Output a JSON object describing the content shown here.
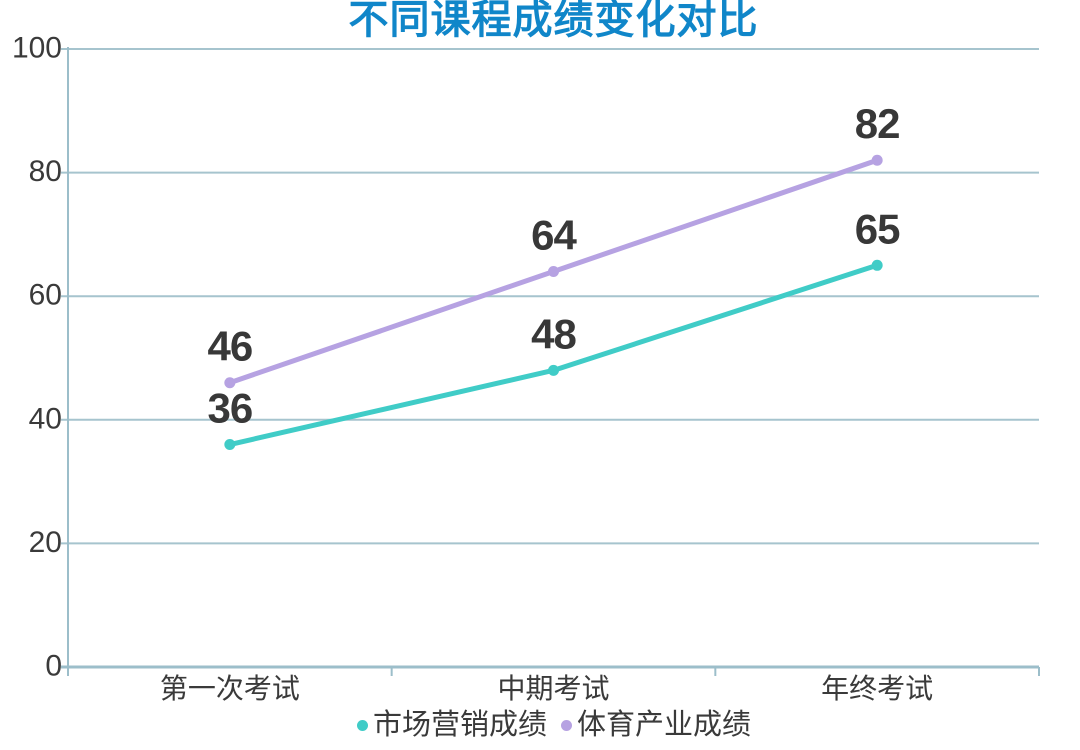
{
  "title": {
    "text": "不同课程成绩变化对比",
    "color": "#1086C9"
  },
  "chart_data": {
    "type": "line",
    "title": "不同课程成绩变化对比",
    "categories": [
      "第一次考试",
      "中期考试",
      "年终考试"
    ],
    "series": [
      {
        "name": "市场营销成绩",
        "values": [
          36,
          48,
          65
        ],
        "color": "#40CCC7"
      },
      {
        "name": "体育产业成绩",
        "values": [
          46,
          64,
          82
        ],
        "color": "#B6A2E2"
      }
    ],
    "data_labels": [
      {
        "series": "市场营销成绩",
        "labels": [
          "36",
          "48",
          "65"
        ]
      },
      {
        "series": "体育产业成绩",
        "labels": [
          "46",
          "64",
          "82"
        ]
      }
    ],
    "xlabel": "",
    "ylabel": "",
    "ylim": [
      0,
      100
    ],
    "y_ticks": [
      0,
      20,
      40,
      60,
      80,
      100
    ],
    "grid": true,
    "legend_position": "bottom",
    "colors": {
      "axis": "#9CBECA",
      "gridline": "#A6C4CE",
      "tick_label": "#3A3A3A",
      "data_label": "#383838",
      "title": "#1086C9"
    }
  },
  "legend": {
    "items": [
      {
        "label": "市场营销成绩",
        "color": "#40CCC7"
      },
      {
        "label": "体育产业成绩",
        "color": "#B6A2E2"
      }
    ]
  }
}
